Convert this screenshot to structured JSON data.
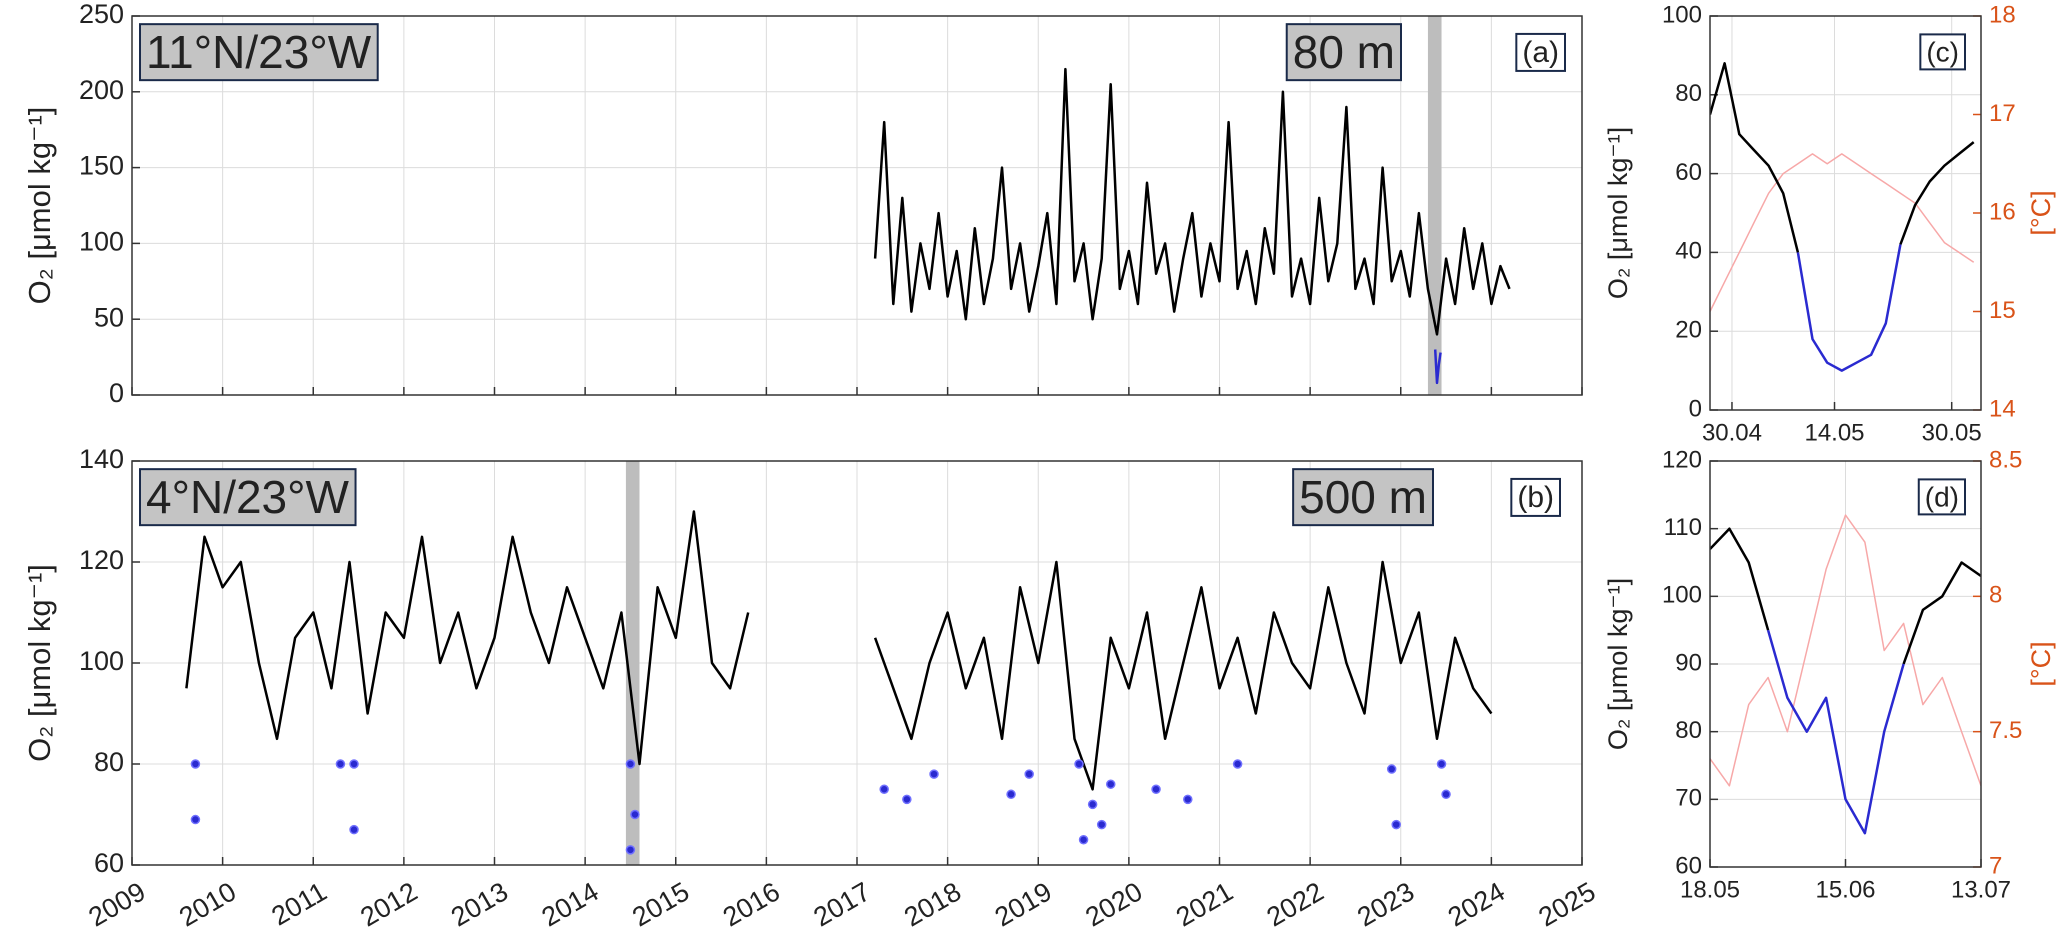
{
  "chart_data": [
    {
      "type": "line",
      "panel_label": "(a)",
      "location": "11°N/23°W",
      "depth": "80 m",
      "y_label": "O₂ [μmol kg⁻¹]",
      "grid": true,
      "show_xtick_labels": false,
      "xlim": [
        2009,
        2025
      ],
      "xticks": [
        2009,
        2010,
        2011,
        2012,
        2013,
        2014,
        2015,
        2016,
        2017,
        2018,
        2019,
        2020,
        2021,
        2022,
        2023,
        2024,
        2025
      ],
      "ylim": [
        0,
        250
      ],
      "yticks": [
        0,
        50,
        100,
        150,
        200,
        250
      ],
      "highlight": [
        2023.3,
        2023.45
      ],
      "x": [
        2017.2,
        2017.3,
        2017.4,
        2017.5,
        2017.6,
        2017.7,
        2017.8,
        2017.9,
        2018.0,
        2018.1,
        2018.2,
        2018.3,
        2018.4,
        2018.5,
        2018.6,
        2018.7,
        2018.8,
        2018.9,
        2019.0,
        2019.1,
        2019.2,
        2019.3,
        2019.4,
        2019.5,
        2019.6,
        2019.7,
        2019.8,
        2019.9,
        2020.0,
        2020.1,
        2020.2,
        2020.3,
        2020.4,
        2020.5,
        2020.6,
        2020.7,
        2020.8,
        2020.9,
        2021.0,
        2021.1,
        2021.2,
        2021.3,
        2021.4,
        2021.5,
        2021.6,
        2021.7,
        2021.8,
        2021.9,
        2022.0,
        2022.1,
        2022.2,
        2022.3,
        2022.4,
        2022.5,
        2022.6,
        2022.7,
        2022.8,
        2022.9,
        2023.0,
        2023.1,
        2023.2,
        2023.3,
        2023.4,
        2023.5,
        2023.6,
        2023.7,
        2023.8,
        2023.9,
        2024.0,
        2024.1,
        2024.2
      ],
      "series": [
        {
          "color": "#000000",
          "values": [
            90,
            180,
            60,
            130,
            55,
            100,
            70,
            120,
            65,
            95,
            50,
            110,
            60,
            90,
            150,
            70,
            100,
            55,
            85,
            120,
            60,
            215,
            75,
            100,
            50,
            90,
            205,
            70,
            95,
            60,
            140,
            80,
            100,
            55,
            90,
            120,
            65,
            100,
            75,
            180,
            70,
            95,
            60,
            110,
            80,
            200,
            65,
            90,
            60,
            130,
            75,
            100,
            190,
            70,
            90,
            60,
            150,
            75,
            95,
            65,
            120,
            70,
            40,
            90,
            60,
            110,
            70,
            100,
            60,
            85,
            70
          ]
        },
        {
          "color": "#2a2ad0",
          "x": [
            2023.38,
            2023.4,
            2023.42,
            2023.44
          ],
          "values": [
            30,
            8,
            20,
            28
          ]
        }
      ]
    },
    {
      "type": "line",
      "panel_label": "(b)",
      "location": "4°N/23°W",
      "depth": "500 m",
      "y_label": "O₂ [μmol kg⁻¹]",
      "grid": true,
      "show_xtick_labels": true,
      "xlim": [
        2009,
        2025
      ],
      "xticks": [
        2009,
        2010,
        2011,
        2012,
        2013,
        2014,
        2015,
        2016,
        2017,
        2018,
        2019,
        2020,
        2021,
        2022,
        2023,
        2024,
        2025
      ],
      "ylim": [
        60,
        140
      ],
      "yticks": [
        60,
        80,
        100,
        120,
        140
      ],
      "highlight": [
        2014.45,
        2014.6
      ],
      "x": [
        2009.6,
        2009.8,
        2010.0,
        2010.2,
        2010.4,
        2010.6,
        2010.8,
        2011.0,
        2011.2,
        2011.4,
        2011.6,
        2011.8,
        2012.0,
        2012.2,
        2012.4,
        2012.6,
        2012.8,
        2013.0,
        2013.2,
        2013.4,
        2013.6,
        2013.8,
        2014.0,
        2014.2,
        2014.4,
        2014.6,
        2014.8,
        2015.0,
        2015.2,
        2015.4,
        2015.6,
        2015.8,
        2016.6,
        2017.2,
        2017.4,
        2017.6,
        2017.8,
        2018.0,
        2018.2,
        2018.4,
        2018.6,
        2018.8,
        2019.0,
        2019.2,
        2019.4,
        2019.6,
        2019.8,
        2020.0,
        2020.2,
        2020.4,
        2020.6,
        2020.8,
        2021.0,
        2021.2,
        2021.4,
        2021.6,
        2021.8,
        2022.0,
        2022.2,
        2022.4,
        2022.6,
        2022.8,
        2023.0,
        2023.2,
        2023.4,
        2023.6,
        2023.8,
        2024.0
      ],
      "series": [
        {
          "color": "#000000",
          "values": [
            95,
            125,
            115,
            120,
            100,
            85,
            105,
            110,
            95,
            120,
            90,
            110,
            105,
            125,
            100,
            110,
            95,
            105,
            125,
            110,
            100,
            115,
            105,
            95,
            110,
            80,
            115,
            105,
            130,
            100,
            95,
            110,
            null,
            105,
            95,
            85,
            100,
            110,
            95,
            105,
            85,
            115,
            100,
            120,
            85,
            75,
            105,
            95,
            110,
            85,
            100,
            115,
            95,
            105,
            90,
            110,
            100,
            95,
            115,
            100,
            90,
            120,
            100,
            110,
            85,
            105,
            95,
            90
          ]
        },
        {
          "color": "#2a2ad0",
          "type": "scatter",
          "x": [
            2009.7,
            2009.7,
            2011.3,
            2011.45,
            2011.45,
            2014.5,
            2014.5,
            2014.55,
            2017.3,
            2017.55,
            2017.85,
            2018.7,
            2018.9,
            2019.45,
            2019.5,
            2019.6,
            2019.7,
            2019.8,
            2020.3,
            2020.65,
            2021.2,
            2022.9,
            2022.95,
            2023.45,
            2023.5
          ],
          "values": [
            80,
            69,
            80,
            80,
            67,
            80,
            63,
            70,
            75,
            73,
            78,
            74,
            78,
            80,
            65,
            72,
            68,
            76,
            75,
            73,
            80,
            79,
            68,
            80,
            74
          ]
        }
      ]
    },
    {
      "type": "line",
      "panel_label": "(c)",
      "y_label": "O₂ [μmol kg⁻¹]",
      "y2_label": "[°C]",
      "y2_color": "#d95319",
      "grid": true,
      "show_xtick_labels": true,
      "xlim": [
        "27.04",
        "03.06"
      ],
      "xticks": [
        "30.04",
        "14.05",
        "30.05"
      ],
      "ylim": [
        0,
        100
      ],
      "yticks": [
        0,
        20,
        40,
        60,
        80,
        100
      ],
      "y2lim": [
        14,
        18
      ],
      "y2ticks": [
        14,
        15,
        16,
        17,
        18
      ],
      "x": [
        "27.04",
        "29.04",
        "01.05",
        "03.05",
        "05.05",
        "07.05",
        "09.05",
        "11.05",
        "13.05",
        "15.05",
        "17.05",
        "19.05",
        "21.05",
        "23.05",
        "25.05",
        "27.05",
        "29.05",
        "31.05",
        "02.06"
      ],
      "series": [
        {
          "color": "#f7a8a8",
          "axis": "y2",
          "values": [
            15.0,
            15.3,
            15.6,
            15.9,
            16.2,
            16.4,
            16.5,
            16.6,
            16.5,
            16.6,
            16.5,
            16.4,
            16.3,
            16.2,
            16.1,
            15.9,
            15.7,
            15.6,
            15.5
          ]
        },
        {
          "color": "#000000",
          "values": [
            75,
            88,
            70,
            66,
            62,
            55,
            40,
            null,
            null,
            null,
            null,
            null,
            null,
            42,
            52,
            58,
            62,
            65,
            68
          ]
        },
        {
          "color": "#2a2ad0",
          "values": [
            null,
            null,
            null,
            null,
            null,
            null,
            40,
            18,
            12,
            10,
            12,
            14,
            22,
            42,
            null,
            null,
            null,
            null,
            null
          ]
        }
      ]
    },
    {
      "type": "line",
      "panel_label": "(d)",
      "y_label": "O₂ [μmol kg⁻¹]",
      "y2_label": "[°C]",
      "y2_color": "#d95319",
      "grid": true,
      "show_xtick_labels": true,
      "xlim": [
        "18.05",
        "13.07"
      ],
      "xticks": [
        "18.05",
        "15.06",
        "13.07"
      ],
      "ylim": [
        60,
        120
      ],
      "yticks": [
        60,
        70,
        80,
        90,
        100,
        110,
        120
      ],
      "y2lim": [
        7,
        8.5
      ],
      "y2ticks": [
        7,
        7.5,
        8,
        8.5
      ],
      "x": [
        "18.05",
        "22.05",
        "26.05",
        "30.05",
        "03.06",
        "07.06",
        "11.06",
        "15.06",
        "19.06",
        "23.06",
        "27.06",
        "01.07",
        "05.07",
        "09.07",
        "13.07"
      ],
      "series": [
        {
          "color": "#f7a8a8",
          "axis": "y2",
          "values": [
            7.4,
            7.3,
            7.6,
            7.7,
            7.5,
            7.8,
            8.1,
            8.3,
            8.2,
            7.8,
            7.9,
            7.6,
            7.7,
            7.5,
            7.3
          ]
        },
        {
          "color": "#000000",
          "values": [
            107,
            110,
            105,
            95,
            null,
            null,
            null,
            null,
            null,
            null,
            90,
            98,
            100,
            105,
            103
          ]
        },
        {
          "color": "#2a2ad0",
          "values": [
            null,
            null,
            null,
            95,
            85,
            80,
            85,
            70,
            65,
            80,
            90,
            null,
            null,
            null,
            null
          ]
        }
      ]
    }
  ]
}
